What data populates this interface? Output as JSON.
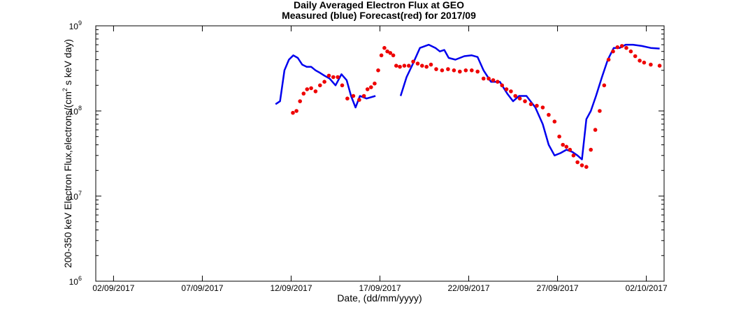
{
  "chart_data": {
    "type": "line",
    "title": "Daily Averaged Electron Flux at GEO",
    "subtitle": "Measured (blue) Forecast(red) for 2017/09",
    "xlabel": "Date, (dd/mm/yyyy)",
    "ylabel": "200-350 keV Electron Flux,electrons/(cm² s keV day)",
    "ylabel_parts": {
      "before": "200-350 keV Electron Flux,electrons/(cm",
      "sup": "2",
      "after": "s keV day)"
    },
    "yscale": "log",
    "ylim": [
      1000000,
      1000000000
    ],
    "xlim": [
      "2017-09-01",
      "2017-10-03"
    ],
    "x_ticks": [
      "02/09/2017",
      "07/09/2017",
      "12/09/2017",
      "17/09/2017",
      "22/09/2017",
      "27/09/2017",
      "02/10/2017"
    ],
    "y_ticks": [
      {
        "value": 1000000,
        "base": "10",
        "exp": "6"
      },
      {
        "value": 10000000,
        "base": "10",
        "exp": "7"
      },
      {
        "value": 100000000,
        "base": "10",
        "exp": "8"
      },
      {
        "value": 1000000000,
        "base": "10",
        "exp": "9"
      }
    ],
    "grid": false,
    "series": [
      {
        "style": "line",
        "color": "#0000ee",
        "points": [
          [
            "2017-09-11",
            120000000
          ],
          [
            "2017-09-11",
            130000000
          ],
          [
            "2017-09-11",
            300000000
          ],
          [
            "2017-09-11",
            400000000
          ],
          [
            "2017-09-12",
            450000000
          ],
          [
            "2017-09-12",
            420000000
          ],
          [
            "2017-09-12",
            350000000
          ],
          [
            "2017-09-12",
            330000000
          ],
          [
            "2017-09-13",
            330000000
          ],
          [
            "2017-09-13",
            300000000
          ],
          [
            "2017-09-13",
            280000000
          ],
          [
            "2017-09-13",
            260000000
          ],
          [
            "2017-09-14",
            240000000
          ],
          [
            "2017-09-14",
            200000000
          ],
          [
            "2017-09-14",
            270000000
          ],
          [
            "2017-09-15",
            230000000
          ],
          [
            "2017-09-15",
            150000000
          ],
          [
            "2017-09-15",
            110000000
          ],
          [
            "2017-09-15",
            150000000
          ],
          [
            "2017-09-16",
            140000000
          ],
          [
            "2017-09-16",
            150000000
          ]
        ]
      },
      {
        "style": "line",
        "color": "#0000ee",
        "points": [
          [
            "2017-09-18",
            150000000
          ],
          [
            "2017-09-18",
            250000000
          ],
          [
            "2017-09-18",
            350000000
          ],
          [
            "2017-09-19",
            550000000
          ],
          [
            "2017-09-19",
            600000000
          ],
          [
            "2017-09-20",
            550000000
          ],
          [
            "2017-09-20",
            500000000
          ],
          [
            "2017-09-20",
            520000000
          ],
          [
            "2017-09-20",
            420000000
          ],
          [
            "2017-09-21",
            400000000
          ],
          [
            "2017-09-21",
            440000000
          ],
          [
            "2017-09-22",
            450000000
          ],
          [
            "2017-09-22",
            430000000
          ],
          [
            "2017-09-22",
            300000000
          ],
          [
            "2017-09-23",
            220000000
          ],
          [
            "2017-09-23",
            220000000
          ],
          [
            "2017-09-24",
            160000000
          ],
          [
            "2017-09-24",
            130000000
          ],
          [
            "2017-09-24",
            150000000
          ],
          [
            "2017-09-25",
            150000000
          ],
          [
            "2017-09-25",
            110000000
          ],
          [
            "2017-09-26",
            70000000
          ],
          [
            "2017-09-26",
            40000000
          ],
          [
            "2017-09-26",
            30000000
          ],
          [
            "2017-09-27",
            32000000
          ],
          [
            "2017-09-27",
            35000000
          ],
          [
            "2017-09-27",
            33000000
          ],
          [
            "2017-09-28",
            30000000
          ],
          [
            "2017-09-28",
            27000000
          ],
          [
            "2017-09-28",
            80000000
          ],
          [
            "2017-09-28",
            100000000
          ],
          [
            "2017-09-29",
            150000000
          ],
          [
            "2017-09-29",
            250000000
          ],
          [
            "2017-09-29",
            400000000
          ],
          [
            "2017-09-30",
            550000000
          ],
          [
            "2017-09-30",
            550000000
          ],
          [
            "2017-09-30",
            600000000
          ],
          [
            "2017-10-01",
            600000000
          ],
          [
            "2017-10-01",
            580000000
          ],
          [
            "2017-10-02",
            550000000
          ],
          [
            "2017-10-02",
            540000000
          ]
        ]
      },
      {
        "style": "dots",
        "color": "#ee0000",
        "points": [
          [
            "2017-09-12",
            95000000
          ],
          [
            "2017-09-12",
            100000000
          ],
          [
            "2017-09-12",
            130000000
          ],
          [
            "2017-09-12",
            160000000
          ],
          [
            "2017-09-12",
            180000000
          ],
          [
            "2017-09-13",
            185000000
          ],
          [
            "2017-09-13",
            170000000
          ],
          [
            "2017-09-13",
            200000000
          ],
          [
            "2017-09-13",
            220000000
          ],
          [
            "2017-09-14",
            260000000
          ],
          [
            "2017-09-14",
            250000000
          ],
          [
            "2017-09-14",
            250000000
          ],
          [
            "2017-09-14",
            200000000
          ],
          [
            "2017-09-15",
            140000000
          ],
          [
            "2017-09-15",
            150000000
          ],
          [
            "2017-09-15",
            135000000
          ],
          [
            "2017-09-16",
            150000000
          ],
          [
            "2017-09-16",
            180000000
          ],
          [
            "2017-09-16",
            190000000
          ],
          [
            "2017-09-16",
            210000000
          ],
          [
            "2017-09-16",
            300000000
          ],
          [
            "2017-09-17",
            450000000
          ],
          [
            "2017-09-17",
            550000000
          ],
          [
            "2017-09-17",
            500000000
          ],
          [
            "2017-09-17",
            480000000
          ],
          [
            "2017-09-17",
            450000000
          ],
          [
            "2017-09-17",
            340000000
          ],
          [
            "2017-09-18",
            330000000
          ],
          [
            "2017-09-18",
            340000000
          ],
          [
            "2017-09-18",
            340000000
          ],
          [
            "2017-09-18",
            380000000
          ],
          [
            "2017-09-19",
            360000000
          ],
          [
            "2017-09-19",
            340000000
          ],
          [
            "2017-09-19",
            330000000
          ],
          [
            "2017-09-19",
            350000000
          ],
          [
            "2017-09-20",
            310000000
          ],
          [
            "2017-09-20",
            300000000
          ],
          [
            "2017-09-20",
            310000000
          ],
          [
            "2017-09-21",
            300000000
          ],
          [
            "2017-09-21",
            290000000
          ],
          [
            "2017-09-21",
            300000000
          ],
          [
            "2017-09-22",
            300000000
          ],
          [
            "2017-09-22",
            290000000
          ],
          [
            "2017-09-22",
            240000000
          ],
          [
            "2017-09-23",
            240000000
          ],
          [
            "2017-09-23",
            230000000
          ],
          [
            "2017-09-23",
            220000000
          ],
          [
            "2017-09-23",
            200000000
          ],
          [
            "2017-09-24",
            180000000
          ],
          [
            "2017-09-24",
            170000000
          ],
          [
            "2017-09-24",
            150000000
          ],
          [
            "2017-09-24",
            140000000
          ],
          [
            "2017-09-25",
            130000000
          ],
          [
            "2017-09-25",
            120000000
          ],
          [
            "2017-09-25",
            115000000
          ],
          [
            "2017-09-26",
            110000000
          ],
          [
            "2017-09-26",
            90000000
          ],
          [
            "2017-09-26",
            75000000
          ],
          [
            "2017-09-27",
            50000000
          ],
          [
            "2017-09-27",
            40000000
          ],
          [
            "2017-09-27",
            38000000
          ],
          [
            "2017-09-27",
            35000000
          ],
          [
            "2017-09-27",
            30000000
          ],
          [
            "2017-09-28",
            25000000
          ],
          [
            "2017-09-28",
            23000000
          ],
          [
            "2017-09-28",
            22000000
          ],
          [
            "2017-09-28",
            35000000
          ],
          [
            "2017-09-29",
            60000000
          ],
          [
            "2017-09-29",
            100000000
          ],
          [
            "2017-09-29",
            200000000
          ],
          [
            "2017-09-29",
            400000000
          ],
          [
            "2017-09-30",
            500000000
          ],
          [
            "2017-09-30",
            560000000
          ],
          [
            "2017-09-30",
            580000000
          ],
          [
            "2017-09-30",
            550000000
          ],
          [
            "2017-10-01",
            500000000
          ],
          [
            "2017-10-01",
            440000000
          ],
          [
            "2017-10-01",
            390000000
          ],
          [
            "2017-10-01",
            370000000
          ],
          [
            "2017-10-02",
            350000000
          ],
          [
            "2017-10-02",
            340000000
          ]
        ]
      }
    ]
  }
}
